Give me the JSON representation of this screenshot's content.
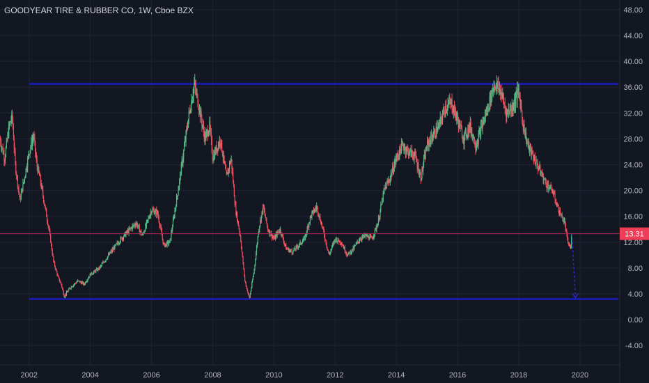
{
  "header": {
    "title": "GOODYEAR TIRE & RUBBER CO, 1W, Cboe BZX"
  },
  "colors": {
    "background": "#131722",
    "grid": "#1f2433",
    "up": "#53b987",
    "down": "#eb4d5c",
    "line": "#b0245a",
    "level_lines": "#1c1ccc",
    "projection": "#2a2acc",
    "price_tag": "#ef3d58",
    "axis_text": "#b2b5be"
  },
  "chart_data": {
    "type": "candlestick",
    "title": "GOODYEAR TIRE & RUBBER CO, 1W, Cboe BZX",
    "x_range": [
      2001.05,
      2021.3
    ],
    "y_range": [
      -7.0,
      49.5
    ],
    "y_ticks": [
      {
        "value": 48,
        "label": "48.00"
      },
      {
        "value": 44,
        "label": "44.00"
      },
      {
        "value": 40,
        "label": "40.00"
      },
      {
        "value": 36,
        "label": "36.00"
      },
      {
        "value": 32,
        "label": "32.00"
      },
      {
        "value": 28,
        "label": "28.00"
      },
      {
        "value": 24,
        "label": "24.00"
      },
      {
        "value": 20,
        "label": "20.00"
      },
      {
        "value": 16,
        "label": "16.00"
      },
      {
        "value": 12,
        "label": "12.00"
      },
      {
        "value": 8,
        "label": "8.00"
      },
      {
        "value": 4,
        "label": "4.00"
      },
      {
        "value": 0,
        "label": "0.00"
      },
      {
        "value": -4,
        "label": "-4.00"
      }
    ],
    "x_ticks": [
      {
        "value": 2002,
        "label": "2002"
      },
      {
        "value": 2004,
        "label": "2004"
      },
      {
        "value": 2006,
        "label": "2006"
      },
      {
        "value": 2008,
        "label": "2008"
      },
      {
        "value": 2010,
        "label": "2010"
      },
      {
        "value": 2012,
        "label": "2012"
      },
      {
        "value": 2014,
        "label": "2014"
      },
      {
        "value": 2016,
        "label": "2016"
      },
      {
        "value": 2018,
        "label": "2018"
      },
      {
        "value": 2020,
        "label": "2020"
      }
    ],
    "price_path": [
      [
        2001.05,
        28
      ],
      [
        2001.2,
        25
      ],
      [
        2001.35,
        30
      ],
      [
        2001.45,
        31.5
      ],
      [
        2001.55,
        24
      ],
      [
        2001.7,
        18.5
      ],
      [
        2001.85,
        22
      ],
      [
        2002.0,
        26
      ],
      [
        2002.15,
        28.5
      ],
      [
        2002.25,
        24
      ],
      [
        2002.35,
        22
      ],
      [
        2002.5,
        18
      ],
      [
        2002.65,
        14
      ],
      [
        2002.8,
        9
      ],
      [
        2002.95,
        6.5
      ],
      [
        2003.05,
        5.5
      ],
      [
        2003.15,
        3.6
      ],
      [
        2003.35,
        5
      ],
      [
        2003.6,
        6
      ],
      [
        2003.8,
        5.5
      ],
      [
        2004.0,
        7
      ],
      [
        2004.3,
        8
      ],
      [
        2004.6,
        10
      ],
      [
        2005.0,
        12.5
      ],
      [
        2005.3,
        14
      ],
      [
        2005.5,
        15
      ],
      [
        2005.7,
        13
      ],
      [
        2006.0,
        17
      ],
      [
        2006.2,
        16.5
      ],
      [
        2006.4,
        11.5
      ],
      [
        2006.6,
        12
      ],
      [
        2006.9,
        21
      ],
      [
        2007.2,
        31
      ],
      [
        2007.4,
        36.5
      ],
      [
        2007.55,
        33
      ],
      [
        2007.75,
        28
      ],
      [
        2007.9,
        30
      ],
      [
        2008.0,
        25
      ],
      [
        2008.25,
        28
      ],
      [
        2008.45,
        22
      ],
      [
        2008.6,
        25
      ],
      [
        2008.75,
        17
      ],
      [
        2008.9,
        13
      ],
      [
        2009.05,
        6
      ],
      [
        2009.2,
        3.3
      ],
      [
        2009.35,
        7.5
      ],
      [
        2009.5,
        14
      ],
      [
        2009.65,
        17.5
      ],
      [
        2009.8,
        14
      ],
      [
        2010.0,
        12.5
      ],
      [
        2010.2,
        14
      ],
      [
        2010.4,
        11
      ],
      [
        2010.6,
        10.5
      ],
      [
        2010.8,
        11.5
      ],
      [
        2011.0,
        12.5
      ],
      [
        2011.2,
        16
      ],
      [
        2011.4,
        17.5
      ],
      [
        2011.6,
        14
      ],
      [
        2011.8,
        10
      ],
      [
        2012.0,
        12.5
      ],
      [
        2012.2,
        12
      ],
      [
        2012.4,
        10
      ],
      [
        2012.6,
        11
      ],
      [
        2012.8,
        12.5
      ],
      [
        2013.0,
        13
      ],
      [
        2013.2,
        12.5
      ],
      [
        2013.4,
        15
      ],
      [
        2013.6,
        20
      ],
      [
        2013.8,
        22
      ],
      [
        2014.0,
        25
      ],
      [
        2014.2,
        27
      ],
      [
        2014.4,
        26
      ],
      [
        2014.6,
        25.5
      ],
      [
        2014.8,
        22
      ],
      [
        2015.0,
        27
      ],
      [
        2015.2,
        28.5
      ],
      [
        2015.4,
        30
      ],
      [
        2015.6,
        33
      ],
      [
        2015.8,
        33.5
      ],
      [
        2016.0,
        31
      ],
      [
        2016.2,
        28
      ],
      [
        2016.4,
        30
      ],
      [
        2016.6,
        27
      ],
      [
        2016.8,
        30
      ],
      [
        2017.0,
        33
      ],
      [
        2017.2,
        36.5
      ],
      [
        2017.4,
        35.5
      ],
      [
        2017.6,
        32
      ],
      [
        2017.8,
        33
      ],
      [
        2018.0,
        35.5
      ],
      [
        2018.15,
        30
      ],
      [
        2018.3,
        27
      ],
      [
        2018.5,
        25
      ],
      [
        2018.7,
        23
      ],
      [
        2018.9,
        21
      ],
      [
        2019.1,
        20
      ],
      [
        2019.3,
        17
      ],
      [
        2019.5,
        15
      ],
      [
        2019.6,
        12
      ],
      [
        2019.7,
        11
      ],
      [
        2019.73,
        13.3
      ]
    ],
    "levels": [
      {
        "name": "resistance",
        "value": 36.5
      },
      {
        "name": "support",
        "value": 3.2
      }
    ],
    "current_price": {
      "value": 13.31,
      "label": "13.31"
    },
    "projection": {
      "from": [
        2019.74,
        13.3
      ],
      "to": [
        2019.85,
        3.5
      ]
    }
  }
}
